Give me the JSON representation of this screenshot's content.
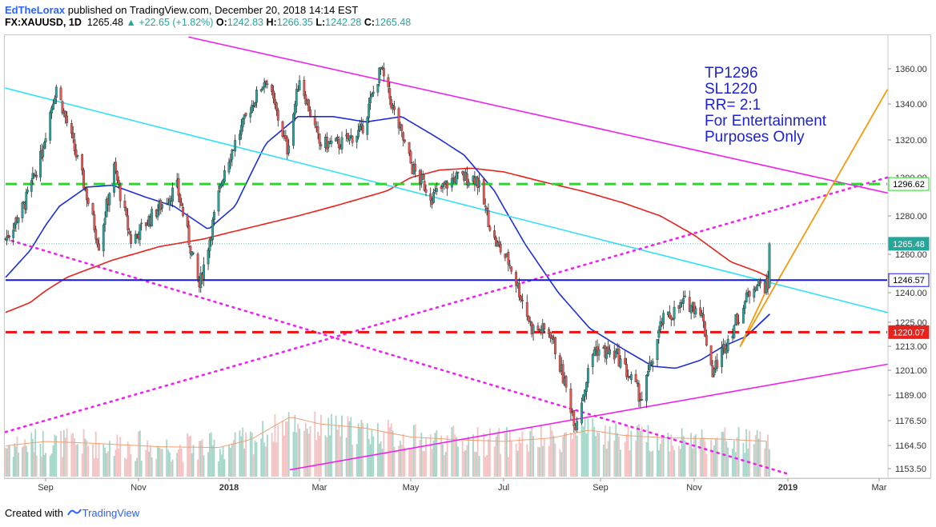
{
  "header": {
    "author": "EdTheLorax",
    "published": "published on TradingView.com, December 20, 2018 14:14 EST",
    "symbol": "FX:XAUUSD, 1D",
    "last": "1265.48",
    "change": "▲ +22.65 (+1.82%)",
    "o_label": "O:",
    "o_val": "1242.83",
    "h_label": "H:",
    "h_val": "1266.35",
    "l_label": "L:",
    "l_val": "1242.28",
    "c_label": "C:",
    "c_val": "1265.48"
  },
  "footer": {
    "created_with": "Created with",
    "brand": "TradingView"
  },
  "colors": {
    "up": "#26a69a",
    "down": "#ef5350",
    "vol_up": "#a5d6c9",
    "vol_down": "#f4c2c2",
    "ma_fast": "#1c2fd6",
    "ma_slow": "#e8221c",
    "cyan": "#33e1f5",
    "magenta": "#ee22ee",
    "green_dash": "#22dd22",
    "red_dash": "#ee1111",
    "blue_line": "#1515dd",
    "orange": "#f59a10",
    "note": "#1e22d6"
  },
  "chart_data": {
    "type": "candlestick",
    "instrument": "FX:XAUUSD",
    "interval": "1D",
    "y_ticks": [
      1153.5,
      1164.5,
      1176.5,
      1189.0,
      1201.0,
      1213.0,
      1225.0,
      1240.0,
      1260.0,
      1280.0,
      1300.0,
      1320.0,
      1340.0,
      1360.0
    ],
    "y_tick_labels": [
      "1153.50",
      "1164.50",
      "1176.50",
      "1189.00",
      "1201.00",
      "1213.00",
      "1225.00",
      "1240.00",
      "1260.00",
      "1280.00",
      "1300.00",
      "1320.00",
      "1340.00",
      "1360.00"
    ],
    "x_labels": [
      {
        "label": "Sep",
        "date": "2017-09-01",
        "bold": false
      },
      {
        "label": "Nov",
        "date": "2017-11-01",
        "bold": false
      },
      {
        "label": "2018",
        "date": "2018-01-01",
        "bold": true
      },
      {
        "label": "Mar",
        "date": "2018-03-01",
        "bold": false
      },
      {
        "label": "May",
        "date": "2018-05-01",
        "bold": false
      },
      {
        "label": "Jul",
        "date": "2018-07-01",
        "bold": false
      },
      {
        "label": "Sep",
        "date": "2018-09-01",
        "bold": false
      },
      {
        "label": "Nov",
        "date": "2018-11-01",
        "bold": false
      },
      {
        "label": "2019",
        "date": "2019-01-01",
        "bold": true
      },
      {
        "label": "Mar",
        "date": "2019-03-01",
        "bold": false
      }
    ],
    "close_path": [
      [
        "2017-08-01",
        1268
      ],
      [
        "2017-08-15",
        1285
      ],
      [
        "2017-08-28",
        1310
      ],
      [
        "2017-09-08",
        1350
      ],
      [
        "2017-09-25",
        1300
      ],
      [
        "2017-10-06",
        1265
      ],
      [
        "2017-10-16",
        1305
      ],
      [
        "2017-10-27",
        1267
      ],
      [
        "2017-11-10",
        1280
      ],
      [
        "2017-11-27",
        1295
      ],
      [
        "2017-12-12",
        1243
      ],
      [
        "2017-12-29",
        1305
      ],
      [
        "2018-01-15",
        1338
      ],
      [
        "2018-01-25",
        1355
      ],
      [
        "2018-02-08",
        1315
      ],
      [
        "2018-02-16",
        1355
      ],
      [
        "2018-03-01",
        1318
      ],
      [
        "2018-03-15",
        1318
      ],
      [
        "2018-03-29",
        1325
      ],
      [
        "2018-04-11",
        1360
      ],
      [
        "2018-04-20",
        1335
      ],
      [
        "2018-05-02",
        1305
      ],
      [
        "2018-05-15",
        1290
      ],
      [
        "2018-05-30",
        1300
      ],
      [
        "2018-06-13",
        1300
      ],
      [
        "2018-06-25",
        1267
      ],
      [
        "2018-07-05",
        1255
      ],
      [
        "2018-07-19",
        1222
      ],
      [
        "2018-07-31",
        1220
      ],
      [
        "2018-08-16",
        1175
      ],
      [
        "2018-08-28",
        1212
      ],
      [
        "2018-09-12",
        1208
      ],
      [
        "2018-09-28",
        1187
      ],
      [
        "2018-10-11",
        1225
      ],
      [
        "2018-10-26",
        1235
      ],
      [
        "2018-11-05",
        1232
      ],
      [
        "2018-11-13",
        1200
      ],
      [
        "2018-11-26",
        1222
      ],
      [
        "2018-12-10",
        1245
      ],
      [
        "2018-12-19",
        1243
      ],
      [
        "2018-12-20",
        1265.48
      ]
    ],
    "ma_fast_path": [
      [
        "2017-08-01",
        1248
      ],
      [
        "2017-08-20",
        1262
      ],
      [
        "2017-09-10",
        1285
      ],
      [
        "2017-09-28",
        1295
      ],
      [
        "2017-10-15",
        1296
      ],
      [
        "2017-11-05",
        1290
      ],
      [
        "2017-11-25",
        1285
      ],
      [
        "2017-12-18",
        1273
      ],
      [
        "2018-01-05",
        1285
      ],
      [
        "2018-01-25",
        1318
      ],
      [
        "2018-02-15",
        1333
      ],
      [
        "2018-03-10",
        1333
      ],
      [
        "2018-04-01",
        1330
      ],
      [
        "2018-04-25",
        1333
      ],
      [
        "2018-05-15",
        1323
      ],
      [
        "2018-06-05",
        1312
      ],
      [
        "2018-06-25",
        1293
      ],
      [
        "2018-07-15",
        1265
      ],
      [
        "2018-08-05",
        1240
      ],
      [
        "2018-08-25",
        1222
      ],
      [
        "2018-09-15",
        1212
      ],
      [
        "2018-10-05",
        1203
      ],
      [
        "2018-10-20",
        1202
      ],
      [
        "2018-11-05",
        1206
      ],
      [
        "2018-11-20",
        1213
      ],
      [
        "2018-12-05",
        1218
      ],
      [
        "2018-12-20",
        1229
      ]
    ],
    "ma_slow_path": [
      [
        "2017-08-01",
        1230
      ],
      [
        "2017-08-20",
        1235
      ],
      [
        "2017-09-15",
        1248
      ],
      [
        "2017-10-15",
        1257
      ],
      [
        "2017-11-15",
        1264
      ],
      [
        "2017-12-15",
        1268
      ],
      [
        "2018-01-15",
        1274
      ],
      [
        "2018-02-15",
        1280
      ],
      [
        "2018-03-15",
        1286
      ],
      [
        "2018-04-15",
        1293
      ],
      [
        "2018-05-01",
        1300
      ],
      [
        "2018-05-20",
        1304
      ],
      [
        "2018-06-10",
        1305
      ],
      [
        "2018-07-01",
        1303
      ],
      [
        "2018-07-25",
        1298
      ],
      [
        "2018-08-20",
        1293
      ],
      [
        "2018-09-15",
        1287
      ],
      [
        "2018-10-10",
        1280
      ],
      [
        "2018-11-01",
        1270
      ],
      [
        "2018-11-25",
        1256
      ],
      [
        "2018-12-12",
        1251
      ],
      [
        "2018-12-20",
        1248
      ]
    ],
    "vol_ma_path": [
      [
        "2017-08-01",
        0.35
      ],
      [
        "2017-09-01",
        0.4
      ],
      [
        "2017-10-01",
        0.38
      ],
      [
        "2017-11-15",
        0.34
      ],
      [
        "2017-12-25",
        0.33
      ],
      [
        "2018-01-15",
        0.42
      ],
      [
        "2018-02-10",
        0.68
      ],
      [
        "2018-03-01",
        0.6
      ],
      [
        "2018-04-01",
        0.55
      ],
      [
        "2018-05-01",
        0.45
      ],
      [
        "2018-06-01",
        0.42
      ],
      [
        "2018-07-01",
        0.4
      ],
      [
        "2018-08-01",
        0.44
      ],
      [
        "2018-08-25",
        0.53
      ],
      [
        "2018-09-15",
        0.47
      ],
      [
        "2018-10-15",
        0.44
      ],
      [
        "2018-11-15",
        0.43
      ],
      [
        "2018-12-20",
        0.4
      ]
    ],
    "volume_scale": "relative",
    "trendlines": [
      {
        "name": "cyan",
        "p1": [
          "2017-08-01",
          1349
        ],
        "p2": [
          "2019-03-15",
          1230
        ],
        "style": "solid"
      },
      {
        "name": "magenta-upper",
        "p1": [
          "2017-12-05",
          1378
        ],
        "p2": [
          "2019-03-15",
          1292
        ],
        "style": "solid"
      },
      {
        "name": "magenta-lower",
        "p1": [
          "2018-02-10",
          1153
        ],
        "p2": [
          "2019-03-15",
          1204
        ],
        "style": "solid"
      },
      {
        "name": "magenta-dotted-up",
        "p1": [
          "2017-08-01",
          1171
        ],
        "p2": [
          "2019-03-15",
          1300
        ],
        "style": "dotted"
      },
      {
        "name": "magenta-dotted-down",
        "p1": [
          "2017-08-01",
          1268
        ],
        "p2": [
          "2019-01-01",
          1151
        ],
        "style": "dotted"
      },
      {
        "name": "orange-upper",
        "p1": [
          "2018-12-01",
          1213
        ],
        "p2": [
          "2019-03-15",
          1348
        ],
        "style": "solid"
      },
      {
        "name": "blue-ma-tail",
        "p1": [
          "2018-12-05",
          1218
        ],
        "p2": [
          "2018-12-20",
          1229
        ],
        "style": "solid"
      }
    ],
    "horizontal_lines": [
      {
        "name": "take-profit",
        "value": 1296.62,
        "label": "1296.62",
        "style": "dashed"
      },
      {
        "name": "support",
        "value": 1246.57,
        "label": "1246.57",
        "style": "solid"
      },
      {
        "name": "stop-loss",
        "value": 1220.07,
        "label": "1220.07",
        "style": "dashed"
      },
      {
        "name": "last-price",
        "value": 1265.48,
        "label": "1265.48",
        "style": "dotted"
      }
    ],
    "annotation_lines": [
      "TP1296",
      "SL1220",
      "RR= 2:1",
      "For Entertainment",
      "Purposes Only"
    ]
  }
}
